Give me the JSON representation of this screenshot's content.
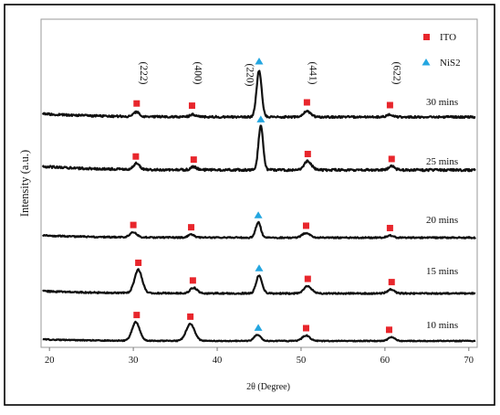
{
  "chart_data": {
    "type": "line",
    "xlabel": "2θ (Degree)",
    "ylabel": "Intensity (a.u.)",
    "xlim": [
      19,
      71
    ],
    "xticks": [
      20,
      30,
      40,
      50,
      60,
      70
    ],
    "plane_labels": [
      {
        "text": "(222)",
        "x": 30.4
      },
      {
        "text": "(400)",
        "x": 36.9
      },
      {
        "text": "(220)",
        "x": 43.1
      },
      {
        "text": "(441)",
        "x": 50.6
      },
      {
        "text": "(622)",
        "x": 60.6
      }
    ],
    "legend": [
      {
        "label": "ITO",
        "marker": "square",
        "color": "#e8262c"
      },
      {
        "label": "NiS2",
        "marker": "triangle",
        "color": "#24a6e0"
      }
    ],
    "series": [
      {
        "name": "30 mins",
        "peaks": [
          {
            "x": 30.4,
            "height": 0.08,
            "width": 0.35
          },
          {
            "x": 37.1,
            "height": 0.04,
            "width": 0.35
          },
          {
            "x": 45.0,
            "height": 0.85,
            "width": 0.3
          },
          {
            "x": 50.7,
            "height": 0.1,
            "width": 0.45
          },
          {
            "x": 60.6,
            "height": 0.05,
            "width": 0.35
          }
        ],
        "markers": [
          {
            "x": 30.4,
            "type": "ITO"
          },
          {
            "x": 37.0,
            "type": "ITO"
          },
          {
            "x": 45.0,
            "type": "NiS2"
          },
          {
            "x": 50.7,
            "type": "ITO"
          },
          {
            "x": 60.6,
            "type": "ITO"
          }
        ]
      },
      {
        "name": "25 mins",
        "peaks": [
          {
            "x": 30.4,
            "height": 0.1,
            "width": 0.35
          },
          {
            "x": 37.2,
            "height": 0.05,
            "width": 0.35
          },
          {
            "x": 45.2,
            "height": 0.7,
            "width": 0.28
          },
          {
            "x": 50.8,
            "height": 0.14,
            "width": 0.45
          },
          {
            "x": 60.8,
            "height": 0.06,
            "width": 0.35
          }
        ],
        "markers": [
          {
            "x": 30.3,
            "type": "ITO"
          },
          {
            "x": 37.2,
            "type": "ITO"
          },
          {
            "x": 45.2,
            "type": "NiS2"
          },
          {
            "x": 50.8,
            "type": "ITO"
          },
          {
            "x": 60.8,
            "type": "ITO"
          }
        ]
      },
      {
        "name": "20 mins",
        "peaks": [
          {
            "x": 30.0,
            "height": 0.14,
            "width": 0.4
          },
          {
            "x": 36.9,
            "height": 0.08,
            "width": 0.35
          },
          {
            "x": 44.9,
            "height": 0.4,
            "width": 0.3
          },
          {
            "x": 50.6,
            "height": 0.12,
            "width": 0.45
          },
          {
            "x": 60.6,
            "height": 0.06,
            "width": 0.35
          }
        ],
        "markers": [
          {
            "x": 30.0,
            "type": "ITO"
          },
          {
            "x": 36.9,
            "type": "ITO"
          },
          {
            "x": 44.9,
            "type": "NiS2"
          },
          {
            "x": 50.6,
            "type": "ITO"
          },
          {
            "x": 60.6,
            "type": "ITO"
          }
        ]
      },
      {
        "name": "15 mins",
        "peaks": [
          {
            "x": 30.6,
            "height": 0.58,
            "width": 0.45
          },
          {
            "x": 37.2,
            "height": 0.14,
            "width": 0.4
          },
          {
            "x": 45.0,
            "height": 0.45,
            "width": 0.35
          },
          {
            "x": 50.8,
            "height": 0.18,
            "width": 0.45
          },
          {
            "x": 60.7,
            "height": 0.1,
            "width": 0.4
          }
        ],
        "markers": [
          {
            "x": 30.6,
            "type": "ITO"
          },
          {
            "x": 37.1,
            "type": "ITO"
          },
          {
            "x": 45.0,
            "type": "NiS2"
          },
          {
            "x": 50.8,
            "type": "ITO"
          },
          {
            "x": 60.8,
            "type": "ITO"
          }
        ]
      },
      {
        "name": "10 mins",
        "peaks": [
          {
            "x": 30.3,
            "height": 0.68,
            "width": 0.45
          },
          {
            "x": 36.8,
            "height": 0.62,
            "width": 0.5
          },
          {
            "x": 44.8,
            "height": 0.22,
            "width": 0.4
          },
          {
            "x": 50.6,
            "height": 0.2,
            "width": 0.45
          },
          {
            "x": 60.8,
            "height": 0.14,
            "width": 0.4
          }
        ],
        "markers": [
          {
            "x": 30.4,
            "type": "ITO"
          },
          {
            "x": 36.8,
            "type": "ITO"
          },
          {
            "x": 44.9,
            "type": "NiS2"
          },
          {
            "x": 50.6,
            "type": "ITO"
          },
          {
            "x": 60.5,
            "type": "ITO"
          }
        ]
      }
    ]
  }
}
